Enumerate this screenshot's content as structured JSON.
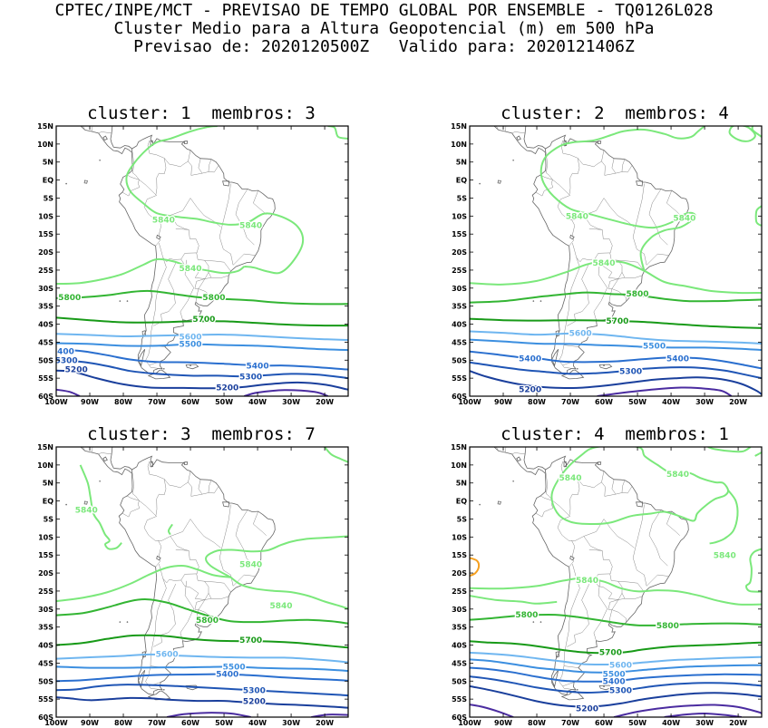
{
  "header": {
    "line1": "CPTEC/INPE/MCT - PREVISAO DE TEMPO GLOBAL POR ENSEMBLE - TQ0126L028",
    "line2": "Cluster Medio para a Altura Geopotencial (m) em 500 hPa",
    "line3": "Previsao de: 2020120500Z   Valido para: 2020121406Z"
  },
  "axes": {
    "lat_labels": [
      "15N",
      "10N",
      "5N",
      "EQ",
      "5S",
      "10S",
      "15S",
      "20S",
      "25S",
      "30S",
      "35S",
      "40S",
      "45S",
      "50S",
      "55S",
      "60S"
    ],
    "lon_labels": [
      "100W",
      "90W",
      "80W",
      "70W",
      "60W",
      "50W",
      "40W",
      "30W",
      "20W"
    ]
  },
  "colors": {
    "c5840": "#7be87b",
    "c5800": "#33b533",
    "c5700": "#189a18",
    "c5600": "#6fb6f0",
    "c5500": "#3c8fe0",
    "c5400": "#2a6fcf",
    "c5300": "#1f55b5",
    "c5200": "#1a3f9c",
    "c5100": "#4b2ca0",
    "c5900": "#f5a020"
  },
  "panels": [
    {
      "title": "cluster: 1  membros: 3",
      "labels": [
        {
          "text": "5840",
          "color": "c5840",
          "lon": -68,
          "lat": -11
        },
        {
          "text": "5840",
          "color": "c5840",
          "lon": -42,
          "lat": -12.5
        },
        {
          "text": "5840",
          "color": "c5840",
          "lon": -60,
          "lat": -24.5
        },
        {
          "text": "5800",
          "color": "c5800",
          "lon": -96,
          "lat": -32.5
        },
        {
          "text": "5800",
          "color": "c5800",
          "lon": -53,
          "lat": -32.5
        },
        {
          "text": "5700",
          "color": "c5700",
          "lon": -56,
          "lat": -38.5
        },
        {
          "text": "5600",
          "color": "c5600",
          "lon": -60,
          "lat": -43.5
        },
        {
          "text": "5500",
          "color": "c5500",
          "lon": -60,
          "lat": -45.5
        },
        {
          "text": "5400",
          "color": "c5400",
          "lon": -98,
          "lat": -47.5
        },
        {
          "text": "5300",
          "color": "c5300",
          "lon": -97,
          "lat": -50
        },
        {
          "text": "5200",
          "color": "c5200",
          "lon": -94,
          "lat": -52.5
        },
        {
          "text": "5400",
          "color": "c5400",
          "lon": -40,
          "lat": -51.5
        },
        {
          "text": "5300",
          "color": "c5300",
          "lon": -42,
          "lat": -54.5
        },
        {
          "text": "5200",
          "color": "c5200",
          "lon": -49,
          "lat": -57.5
        }
      ]
    },
    {
      "title": "cluster: 2  membros: 4",
      "labels": [
        {
          "text": "5840",
          "color": "c5840",
          "lon": -68,
          "lat": -10
        },
        {
          "text": "5840",
          "color": "c5840",
          "lon": -36,
          "lat": -10.5
        },
        {
          "text": "5840",
          "color": "c5840",
          "lon": -60,
          "lat": -23
        },
        {
          "text": "5800",
          "color": "c5800",
          "lon": -50,
          "lat": -31.5
        },
        {
          "text": "5700",
          "color": "c5700",
          "lon": -56,
          "lat": -39
        },
        {
          "text": "5600",
          "color": "c5600",
          "lon": -67,
          "lat": -42.5
        },
        {
          "text": "5500",
          "color": "c5500",
          "lon": -45,
          "lat": -46
        },
        {
          "text": "5400",
          "color": "c5400",
          "lon": -82,
          "lat": -49.5
        },
        {
          "text": "5400",
          "color": "c5400",
          "lon": -38,
          "lat": -49.5
        },
        {
          "text": "5300",
          "color": "c5300",
          "lon": -52,
          "lat": -53
        },
        {
          "text": "5200",
          "color": "c5200",
          "lon": -82,
          "lat": -58
        }
      ]
    },
    {
      "title": "cluster: 3  membros: 7",
      "labels": [
        {
          "text": "5840",
          "color": "c5840",
          "lon": -91,
          "lat": -2.5
        },
        {
          "text": "5840",
          "color": "c5840",
          "lon": -42,
          "lat": -17.5
        },
        {
          "text": "5840",
          "color": "c5840",
          "lon": -33,
          "lat": -29
        },
        {
          "text": "5800",
          "color": "c5800",
          "lon": -55,
          "lat": -33
        },
        {
          "text": "5700",
          "color": "c5700",
          "lon": -42,
          "lat": -38.5
        },
        {
          "text": "5600",
          "color": "c5600",
          "lon": -67,
          "lat": -42.5
        },
        {
          "text": "5500",
          "color": "c5500",
          "lon": -47,
          "lat": -46
        },
        {
          "text": "5400",
          "color": "c5400",
          "lon": -49,
          "lat": -48
        },
        {
          "text": "5300",
          "color": "c5300",
          "lon": -41,
          "lat": -52.5
        },
        {
          "text": "5200",
          "color": "c5200",
          "lon": -41,
          "lat": -55.5
        }
      ]
    },
    {
      "title": "cluster: 4  membros: 1",
      "labels": [
        {
          "text": "5840",
          "color": "c5840",
          "lon": -70,
          "lat": 6.5
        },
        {
          "text": "5840",
          "color": "c5840",
          "lon": -38,
          "lat": 7.5
        },
        {
          "text": "5840",
          "color": "c5840",
          "lon": -24,
          "lat": -15
        },
        {
          "text": "5840",
          "color": "c5840",
          "lon": -65,
          "lat": -22
        },
        {
          "text": "5800",
          "color": "c5800",
          "lon": -83,
          "lat": -31.5
        },
        {
          "text": "5800",
          "color": "c5800",
          "lon": -41,
          "lat": -34.5
        },
        {
          "text": "5700",
          "color": "c5700",
          "lon": -58,
          "lat": -42
        },
        {
          "text": "5600",
          "color": "c5600",
          "lon": -55,
          "lat": -45.5
        },
        {
          "text": "5500",
          "color": "c5500",
          "lon": -57,
          "lat": -48
        },
        {
          "text": "5400",
          "color": "c5400",
          "lon": -57,
          "lat": -50
        },
        {
          "text": "5300",
          "color": "c5300",
          "lon": -55,
          "lat": -52.5
        },
        {
          "text": "5200",
          "color": "c5200",
          "lon": -65,
          "lat": -57.5
        }
      ]
    }
  ]
}
